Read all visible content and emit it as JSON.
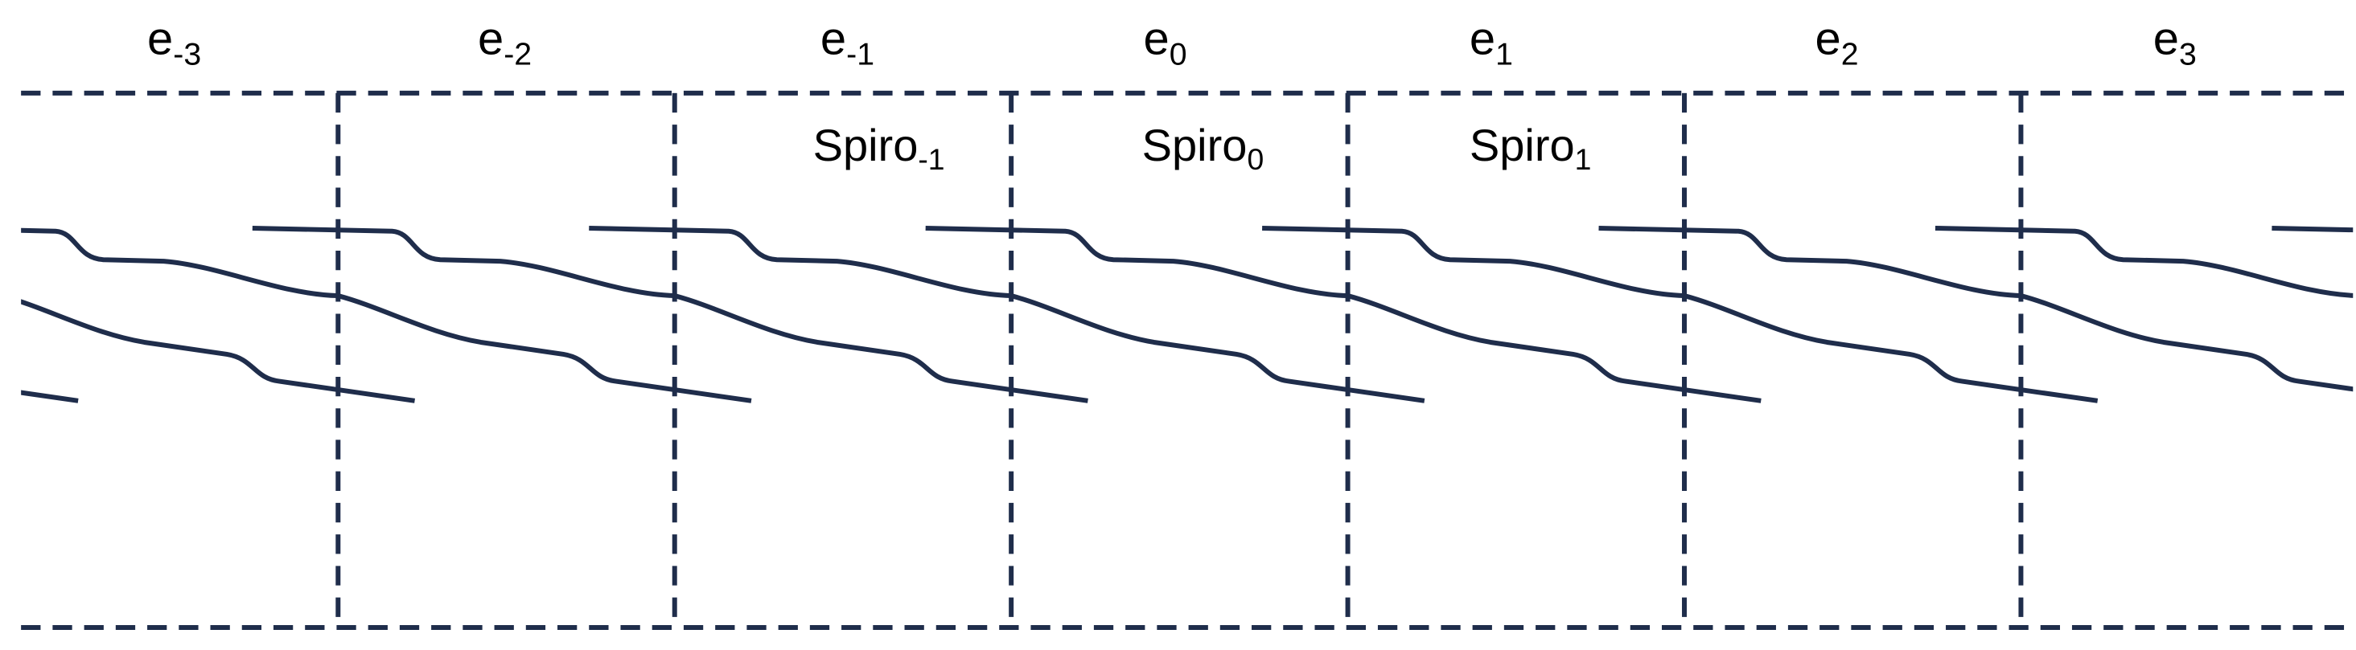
{
  "cells": [
    {
      "base": "e",
      "sub": "-3"
    },
    {
      "base": "e",
      "sub": "-2"
    },
    {
      "base": "e",
      "sub": "-1"
    },
    {
      "base": "e",
      "sub": "0"
    },
    {
      "base": "e",
      "sub": "1"
    },
    {
      "base": "e",
      "sub": "2"
    },
    {
      "base": "e",
      "sub": "3"
    }
  ],
  "spiro_labels": [
    {
      "base": "Spiro",
      "sub": "-1"
    },
    {
      "base": "Spiro",
      "sub": "0"
    },
    {
      "base": "Spiro",
      "sub": "1"
    }
  ]
}
